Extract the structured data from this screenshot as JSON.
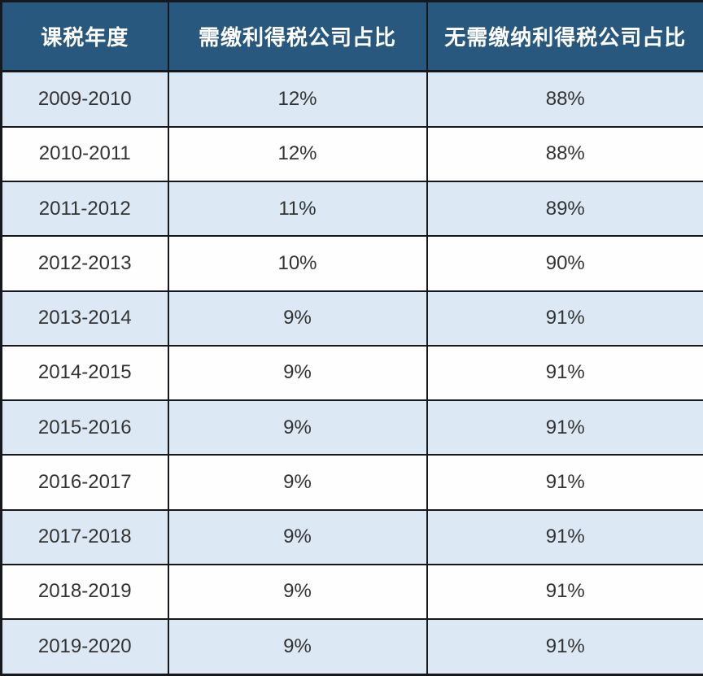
{
  "chart_data": {
    "type": "table",
    "title": "",
    "columns": [
      "课税年度",
      "需缴利得税公司占比",
      "无需缴纳利得税公司占比"
    ],
    "rows": [
      [
        "2009-2010",
        "12%",
        "88%"
      ],
      [
        "2010-2011",
        "12%",
        "88%"
      ],
      [
        "2011-2012",
        "11%",
        "89%"
      ],
      [
        "2012-2013",
        "10%",
        "90%"
      ],
      [
        "2013-2014",
        "9%",
        "91%"
      ],
      [
        "2014-2015",
        "9%",
        "91%"
      ],
      [
        "2015-2016",
        "9%",
        "91%"
      ],
      [
        "2016-2017",
        "9%",
        "91%"
      ],
      [
        "2017-2018",
        "9%",
        "91%"
      ],
      [
        "2018-2019",
        "9%",
        "91%"
      ],
      [
        "2019-2020",
        "9%",
        "91%"
      ]
    ],
    "layout_hints": {
      "striped": "odd data rows (1st, 3rd, ...) are light blue, others white",
      "grid": true,
      "header_style": "dark blue background, white bold text"
    }
  },
  "colors": {
    "header_bg": "#28587d",
    "header_text": "#ffffff",
    "row_alt_bg": "#dce9f5",
    "row_bg": "#fefefe",
    "border": "#15191d",
    "body_text": "#333333"
  }
}
